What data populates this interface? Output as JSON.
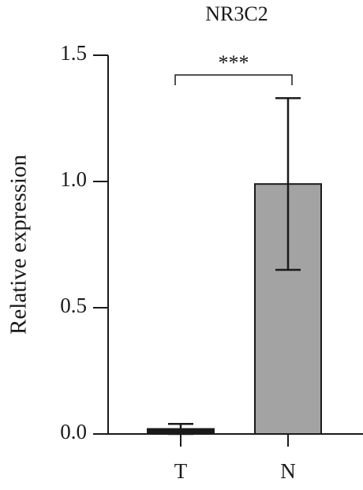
{
  "chart_data": {
    "type": "bar",
    "title": "NR3C2",
    "y_label": "Relative expression",
    "categories": [
      "T",
      "N"
    ],
    "values": [
      0.02,
      0.99
    ],
    "errors": [
      0.02,
      0.34
    ],
    "colors": [
      "#1a1a1a",
      "#a3a3a3"
    ],
    "ylim": [
      0,
      1.5
    ],
    "yticks": [
      {
        "value": 0,
        "label": "0.0"
      },
      0.5,
      {
        "value": 1,
        "label": "1.0"
      },
      1.5
    ],
    "annotation": "***"
  }
}
